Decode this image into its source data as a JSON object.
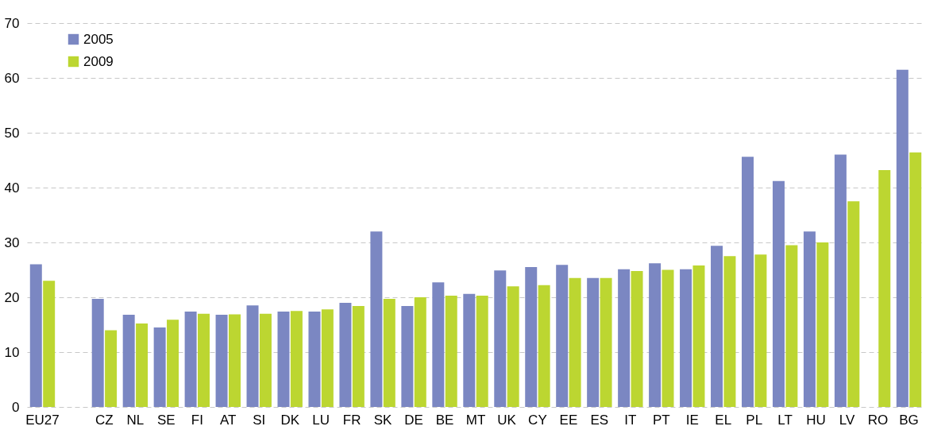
{
  "chart_data": {
    "type": "bar",
    "categories": [
      "EU27",
      null,
      "CZ",
      "NL",
      "SE",
      "FI",
      "AT",
      "SI",
      "DK",
      "LU",
      "FR",
      "SK",
      "DE",
      "BE",
      "MT",
      "UK",
      "CY",
      "EE",
      "ES",
      "IT",
      "PT",
      "IE",
      "EL",
      "PL",
      "LT",
      "HU",
      "LV",
      "RO",
      "BG"
    ],
    "series": [
      {
        "name": "2005",
        "color": "#7b87c2",
        "values": [
          26,
          null,
          19.7,
          16.8,
          14.5,
          17.4,
          16.8,
          18.5,
          17.4,
          17.4,
          19,
          32,
          18.4,
          22.7,
          20.6,
          24.9,
          25.5,
          25.9,
          23.5,
          25.1,
          26.2,
          25.1,
          29.4,
          45.6,
          41.2,
          32,
          46,
          null,
          61.5
        ]
      },
      {
        "name": "2009",
        "color": "#bcd631",
        "values": [
          23,
          null,
          14,
          15.2,
          15.9,
          17,
          16.9,
          17,
          17.5,
          17.8,
          18.4,
          19.7,
          20,
          20.3,
          20.3,
          22,
          22.2,
          23.5,
          23.5,
          24.8,
          25,
          25.8,
          27.5,
          27.8,
          29.5,
          30,
          37.5,
          43.2,
          46.4
        ]
      }
    ],
    "ylim": [
      0,
      70
    ],
    "yticks": [
      0,
      10,
      20,
      30,
      40,
      50,
      60,
      70
    ],
    "grid": "y",
    "legend": "top left"
  }
}
